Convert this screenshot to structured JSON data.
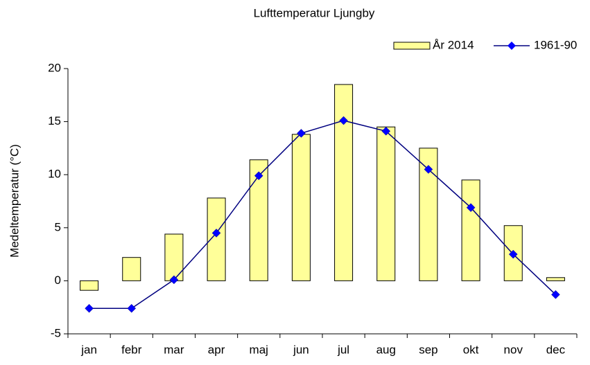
{
  "chart_data": {
    "type": "bar",
    "title": "Lufttemperatur Ljungby",
    "y_label": "Medeltemperatur (°C)",
    "categories": [
      "jan",
      "febr",
      "mar",
      "apr",
      "maj",
      "jun",
      "jul",
      "aug",
      "sep",
      "okt",
      "nov",
      "dec"
    ],
    "series": [
      {
        "name": "År 2014",
        "type": "bar",
        "color": "#ffff99",
        "values": [
          -0.9,
          2.2,
          4.4,
          7.8,
          11.4,
          13.8,
          18.5,
          14.5,
          12.5,
          9.5,
          5.2,
          0.3
        ]
      },
      {
        "name": "1961-90",
        "type": "line",
        "color": "#000080",
        "marker_color": "#0000ff",
        "values": [
          -2.6,
          -2.6,
          0.1,
          4.5,
          9.9,
          13.9,
          15.1,
          14.1,
          10.5,
          6.9,
          2.5,
          -1.3
        ]
      }
    ],
    "ylim": [
      -5,
      20
    ],
    "yticks": [
      -5,
      0,
      5,
      10,
      15,
      20
    ],
    "legend": "top-right"
  }
}
